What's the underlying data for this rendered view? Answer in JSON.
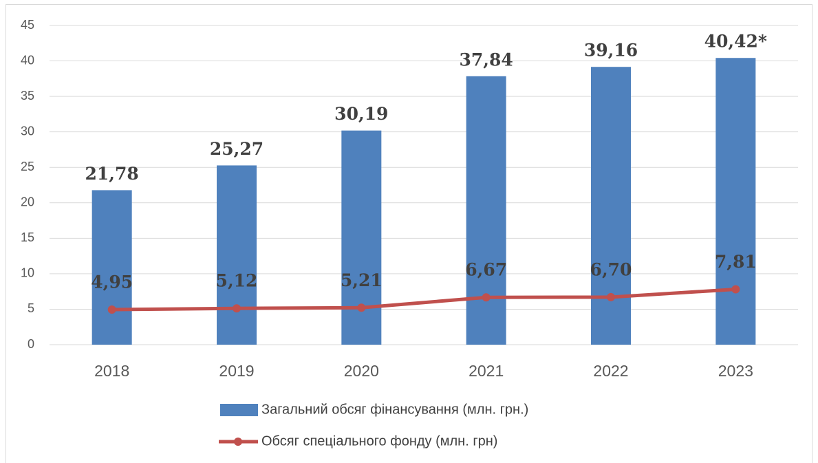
{
  "chart_data": {
    "type": "bar",
    "categories": [
      "2018",
      "2019",
      "2020",
      "2021",
      "2022",
      "2023"
    ],
    "series": [
      {
        "name": "Загальний обсяг фінансування (млн. грн.)",
        "color": "#4f81bd",
        "type": "bar",
        "values": [
          21.78,
          25.27,
          30.19,
          37.84,
          39.16,
          40.42
        ],
        "value_labels": [
          "21,78",
          "25,27",
          "30,19",
          "37,84",
          "39,16",
          "40,42*"
        ]
      },
      {
        "name": "Обсяг спеціального фонду (млн. грн)",
        "color": "#c0504d",
        "type": "line",
        "values": [
          4.95,
          5.12,
          5.21,
          6.67,
          6.7,
          7.81
        ],
        "value_labels": [
          "4,95",
          "5,12",
          "5,21",
          "6,67",
          "6,70",
          "7,81"
        ]
      }
    ],
    "ylim": [
      0,
      45
    ],
    "yticks": [
      0,
      5,
      10,
      15,
      20,
      25,
      30,
      35,
      40,
      45
    ],
    "grid": true,
    "legend": "bottom"
  }
}
